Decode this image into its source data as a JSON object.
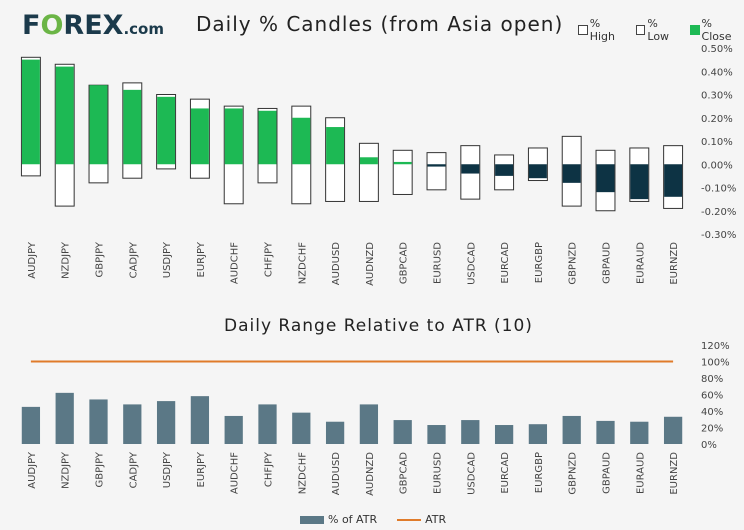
{
  "header": {
    "logo_main": "F",
    "logo_o": "O",
    "logo_rest": "REX",
    "logo_com": ".com"
  },
  "colors": {
    "close_up": "#1db954",
    "close_down": "#0d3344",
    "atr_bar": "#5b7886",
    "atr_line": "#e07b2a"
  },
  "chart_data": [
    {
      "type": "candlestick",
      "title": "Daily % Candles (from Asia open)",
      "legend": [
        "% High",
        "% Low",
        "% Close"
      ],
      "legend_position": "top-right",
      "categories": [
        "AUDJPY",
        "NZDJPY",
        "GBPJPY",
        "CADJPY",
        "USDJPY",
        "EURJPY",
        "AUDCHF",
        "CHFJPY",
        "NZDCHF",
        "AUDUSD",
        "AUDNZD",
        "GBPCAD",
        "EURUSD",
        "USDCAD",
        "EURCAD",
        "EURGBP",
        "GBPNZD",
        "GBPAUD",
        "EURAUD",
        "EURNZD"
      ],
      "high": [
        0.46,
        0.43,
        0.34,
        0.35,
        0.3,
        0.28,
        0.25,
        0.24,
        0.25,
        0.2,
        0.09,
        0.06,
        0.05,
        0.08,
        0.04,
        0.07,
        0.12,
        0.06,
        0.07,
        0.08
      ],
      "low": [
        -0.05,
        -0.18,
        -0.08,
        -0.06,
        -0.02,
        -0.06,
        -0.17,
        -0.08,
        -0.17,
        -0.16,
        -0.16,
        -0.13,
        -0.11,
        -0.15,
        -0.11,
        -0.07,
        -0.18,
        -0.2,
        -0.16,
        -0.19
      ],
      "close": [
        0.45,
        0.42,
        0.34,
        0.32,
        0.29,
        0.24,
        0.24,
        0.23,
        0.2,
        0.16,
        0.03,
        0.01,
        -0.01,
        -0.04,
        -0.05,
        -0.06,
        -0.08,
        -0.12,
        -0.15,
        -0.14
      ],
      "ylim": [
        -0.3,
        0.5
      ],
      "yticks": [
        "0.50%",
        "0.40%",
        "0.30%",
        "0.20%",
        "0.10%",
        "0.00%",
        "-0.10%",
        "-0.20%",
        "-0.30%"
      ]
    },
    {
      "type": "bar",
      "title": "Daily Range Relative to ATR (10)",
      "legend": [
        "% of ATR",
        "ATR"
      ],
      "legend_position": "bottom",
      "categories": [
        "AUDJPY",
        "NZDJPY",
        "GBPJPY",
        "CADJPY",
        "USDJPY",
        "EURJPY",
        "AUDCHF",
        "CHFJPY",
        "NZDCHF",
        "AUDUSD",
        "AUDNZD",
        "GBPCAD",
        "EURUSD",
        "USDCAD",
        "EURCAD",
        "EURGBP",
        "GBPNZD",
        "GBPAUD",
        "EURAUD",
        "EURNZD"
      ],
      "values": [
        45,
        62,
        54,
        48,
        52,
        58,
        34,
        48,
        38,
        27,
        48,
        29,
        23,
        29,
        23,
        24,
        34,
        28,
        27,
        33
      ],
      "atr": 100,
      "ylim": [
        0,
        120
      ],
      "yticks": [
        "120%",
        "100%",
        "80%",
        "60%",
        "40%",
        "20%",
        "0%"
      ]
    }
  ]
}
